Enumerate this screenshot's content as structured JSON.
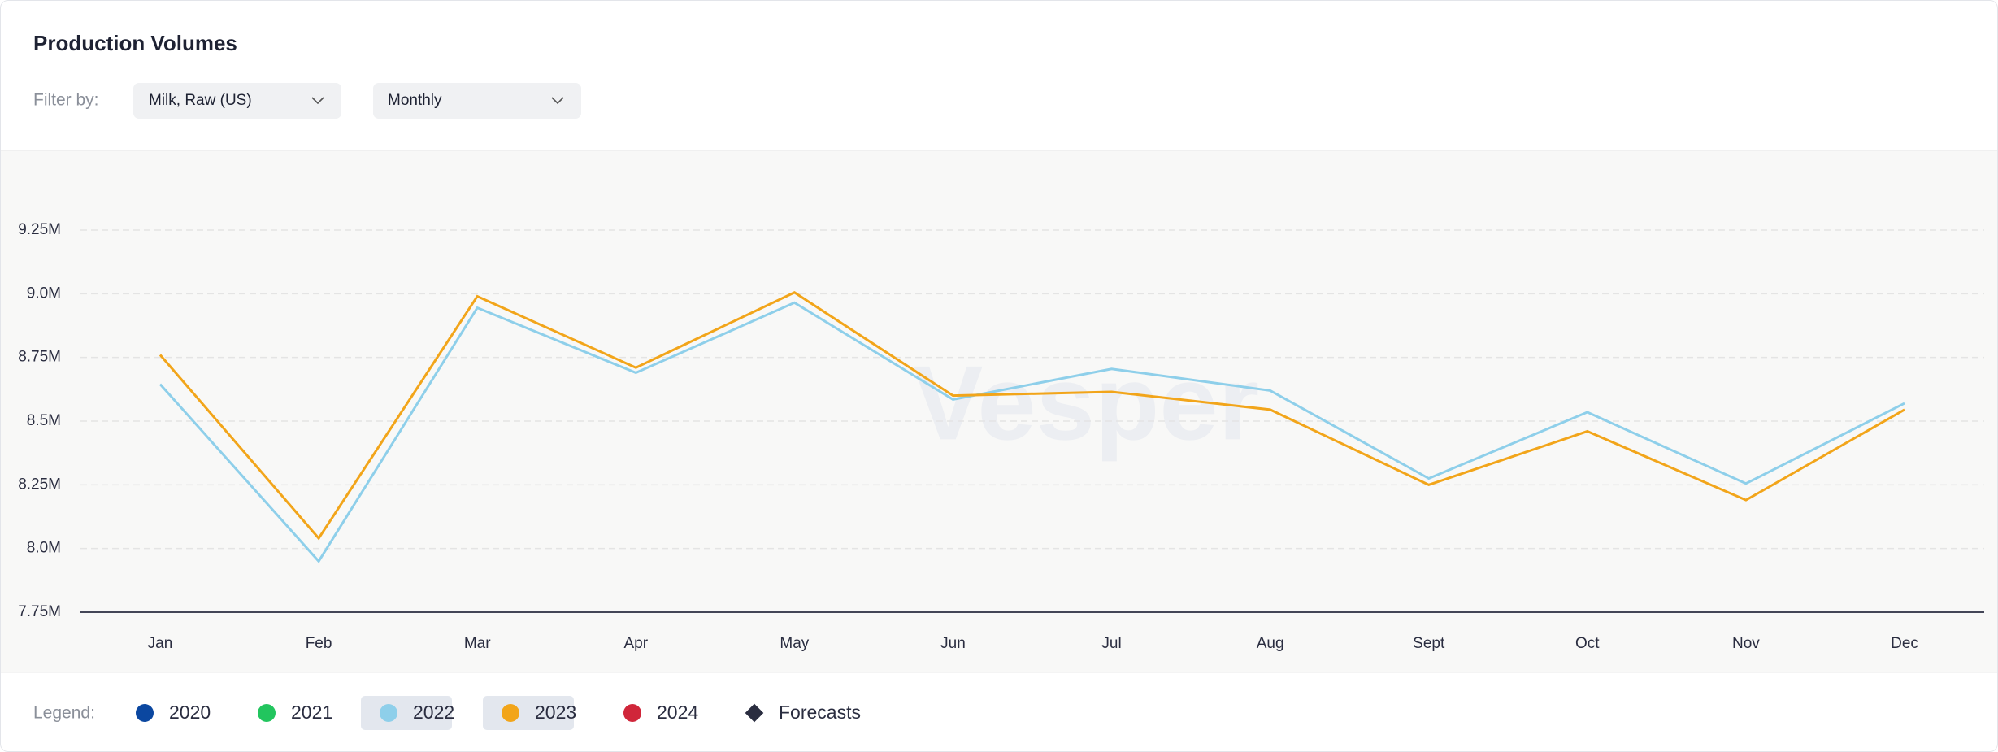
{
  "header": {
    "title": "Production Volumes",
    "filter_label": "Filter by:",
    "filters": [
      "Milk, Raw (US)",
      "Monthly"
    ]
  },
  "watermark": "Vesper",
  "chart_data": {
    "type": "line",
    "categories": [
      "Jan",
      "Feb",
      "Mar",
      "Apr",
      "May",
      "Jun",
      "Jul",
      "Aug",
      "Sept",
      "Oct",
      "Nov",
      "Dec"
    ],
    "series": [
      {
        "name": "2020",
        "color": "#0b47a0",
        "selected": false,
        "values": [
          null,
          null,
          null,
          null,
          null,
          null,
          null,
          null,
          null,
          null,
          null,
          null
        ]
      },
      {
        "name": "2021",
        "color": "#22c55e",
        "selected": false,
        "values": [
          null,
          null,
          null,
          null,
          null,
          null,
          null,
          null,
          null,
          null,
          null,
          null
        ]
      },
      {
        "name": "2022",
        "color": "#8ecfea",
        "selected": true,
        "values": [
          8645000,
          7950000,
          8945000,
          8690000,
          8965000,
          8585000,
          8705000,
          8620000,
          8275000,
          8535000,
          8255000,
          8570000
        ]
      },
      {
        "name": "2023",
        "color": "#f2a51a",
        "selected": true,
        "values": [
          8760000,
          8040000,
          8990000,
          8710000,
          9005000,
          8600000,
          8615000,
          8545000,
          8250000,
          8460000,
          8190000,
          8545000
        ]
      },
      {
        "name": "2024",
        "color": "#d0263a",
        "selected": false,
        "values": [
          null,
          null,
          null,
          null,
          null,
          null,
          null,
          null,
          null,
          null,
          null,
          null
        ]
      }
    ],
    "forecast": {
      "name": "Forecasts",
      "color": "#2a2d40"
    },
    "legend_label": "Legend:",
    "ylim": [
      7750000,
      9250000
    ],
    "yticks": [
      {
        "value": 7750000,
        "label": "7.75M"
      },
      {
        "value": 8000000,
        "label": "8.0M"
      },
      {
        "value": 8250000,
        "label": "8.25M"
      },
      {
        "value": 8500000,
        "label": "8.5M"
      },
      {
        "value": 8750000,
        "label": "8.75M"
      },
      {
        "value": 9000000,
        "label": "9.0M"
      },
      {
        "value": 9250000,
        "label": "9.25M"
      }
    ],
    "grid": true
  }
}
